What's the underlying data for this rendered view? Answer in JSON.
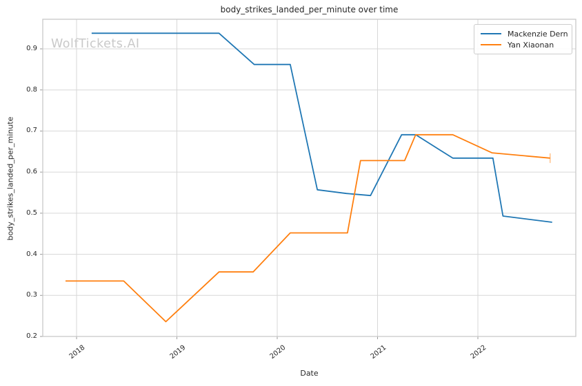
{
  "watermark": "WolfTickets.AI",
  "chart_data": {
    "type": "line",
    "title": "body_strikes_landed_per_minute over time",
    "xlabel": "Date",
    "ylabel": "body_strikes_landed_per_minute",
    "grid": true,
    "legend_position": "upper right",
    "xlim": [
      2017.663,
      2022.976
    ],
    "ylim": [
      0.2,
      0.972
    ],
    "x_ticks": [
      2018,
      2019,
      2020,
      2021,
      2022
    ],
    "y_ticks": [
      0.2,
      0.3,
      0.4,
      0.5,
      0.6,
      0.7,
      0.8,
      0.9
    ],
    "series": [
      {
        "name": "Mackenzie Dern",
        "color": "#1f77b4",
        "end_cap": false,
        "x": [
          2018.15,
          2019.42,
          2019.77,
          2020.13,
          2020.4,
          2020.69,
          2020.93,
          2021.24,
          2021.38,
          2021.75,
          2022.15,
          2022.25,
          2022.74
        ],
        "y": [
          0.938,
          0.938,
          0.862,
          0.862,
          0.557,
          0.548,
          0.543,
          0.691,
          0.691,
          0.634,
          0.634,
          0.493,
          0.478
        ]
      },
      {
        "name": "Yan Xiaonan",
        "color": "#ff7f0e",
        "end_cap": true,
        "x": [
          2017.89,
          2018.47,
          2018.89,
          2019.42,
          2019.76,
          2020.13,
          2020.7,
          2020.83,
          2021.27,
          2021.38,
          2021.75,
          2022.14,
          2022.72
        ],
        "y": [
          0.335,
          0.335,
          0.236,
          0.357,
          0.357,
          0.452,
          0.452,
          0.628,
          0.628,
          0.691,
          0.691,
          0.647,
          0.634
        ]
      }
    ]
  }
}
